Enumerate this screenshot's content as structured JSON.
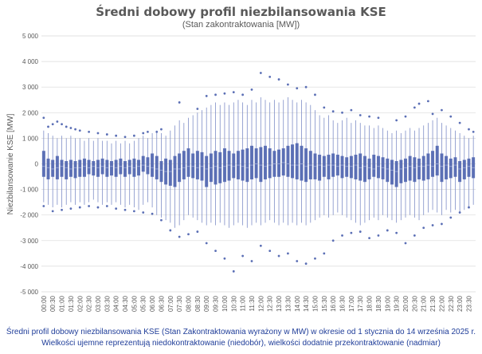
{
  "chart_data": {
    "type": "box",
    "title": "Średni dobowy profil niezbilansowania KSE",
    "subtitle": "(Stan zakontraktowania [MW])",
    "ylabel": "Niezbilansowanie KSE [MW]",
    "xlabel": "",
    "ylim": [
      -5000,
      5000
    ],
    "yticks": [
      -5000,
      -4000,
      -3000,
      -2000,
      -1000,
      0,
      1000,
      2000,
      3000,
      4000,
      5000
    ],
    "ytick_labels": [
      "-5 000",
      "-4 000",
      "-3 000",
      "-2 000",
      "-1 000",
      "0",
      "1 000",
      "2 000",
      "3 000",
      "4 000",
      "5 000"
    ],
    "grid": true,
    "categories": [
      "00:00",
      "00:15",
      "00:30",
      "00:45",
      "01:00",
      "01:15",
      "01:30",
      "01:45",
      "02:00",
      "02:15",
      "02:30",
      "02:45",
      "03:00",
      "03:15",
      "03:30",
      "03:45",
      "04:00",
      "04:15",
      "04:30",
      "04:45",
      "05:00",
      "05:15",
      "05:30",
      "05:45",
      "06:00",
      "06:15",
      "06:30",
      "06:45",
      "07:00",
      "07:15",
      "07:30",
      "07:45",
      "08:00",
      "08:15",
      "08:30",
      "08:45",
      "09:00",
      "09:15",
      "09:30",
      "09:45",
      "10:00",
      "10:15",
      "10:30",
      "10:45",
      "11:00",
      "11:15",
      "11:30",
      "11:45",
      "12:00",
      "12:15",
      "12:30",
      "12:45",
      "13:00",
      "13:15",
      "13:30",
      "13:45",
      "14:00",
      "14:15",
      "14:30",
      "14:45",
      "15:00",
      "15:15",
      "15:30",
      "15:45",
      "16:00",
      "16:15",
      "16:30",
      "16:45",
      "17:00",
      "17:15",
      "17:30",
      "17:45",
      "18:00",
      "18:15",
      "18:30",
      "18:45",
      "19:00",
      "19:15",
      "19:30",
      "19:45",
      "20:00",
      "20:15",
      "20:30",
      "20:45",
      "21:00",
      "21:15",
      "21:30",
      "21:45",
      "22:00",
      "22:15",
      "22:30",
      "22:45",
      "23:00",
      "23:15",
      "23:30",
      "23:45"
    ],
    "shown_tick_labels": [
      "00:00",
      "00:30",
      "01:00",
      "01:30",
      "02:00",
      "02:30",
      "03:00",
      "03:30",
      "04:00",
      "04:30",
      "05:00",
      "05:30",
      "06:00",
      "06:30",
      "07:00",
      "07:30",
      "08:00",
      "08:30",
      "09:00",
      "09:30",
      "10:00",
      "10:30",
      "11:00",
      "11:30",
      "12:00",
      "12:30",
      "13:00",
      "13:30",
      "14:00",
      "14:30",
      "15:00",
      "15:30",
      "16:00",
      "16:30",
      "17:00",
      "17:30",
      "18:00",
      "18:30",
      "19:00",
      "19:30",
      "20:00",
      "20:30",
      "21:00",
      "21:30",
      "22:00",
      "22:30",
      "23:00",
      "23:30"
    ],
    "q1": [
      -500,
      -600,
      -500,
      -600,
      -500,
      -600,
      -500,
      -550,
      -500,
      -500,
      -400,
      -450,
      -500,
      -400,
      -500,
      -450,
      -500,
      -400,
      -500,
      -400,
      -500,
      -450,
      -300,
      -400,
      -500,
      -600,
      -700,
      -800,
      -850,
      -900,
      -700,
      -600,
      -500,
      -550,
      -600,
      -650,
      -900,
      -700,
      -800,
      -750,
      -700,
      -650,
      -550,
      -600,
      -650,
      -700,
      -600,
      -550,
      -700,
      -600,
      -550,
      -500,
      -500,
      -450,
      -500,
      -550,
      -600,
      -650,
      -700,
      -600,
      -600,
      -650,
      -500,
      -600,
      -500,
      -450,
      -550,
      -500,
      -550,
      -600,
      -650,
      -700,
      -600,
      -500,
      -550,
      -600,
      -700,
      -800,
      -900,
      -750,
      -700,
      -650,
      -700,
      -600,
      -650,
      -600,
      -500,
      -450,
      -700,
      -600,
      -550,
      -500,
      -700,
      -600,
      -500,
      -550
    ],
    "median": [
      -100,
      -150,
      -200,
      -150,
      -100,
      -150,
      -200,
      -150,
      -150,
      -100,
      -150,
      -100,
      -150,
      -100,
      -150,
      -100,
      -150,
      -100,
      -150,
      -100,
      -150,
      -100,
      -50,
      -100,
      -150,
      -200,
      -250,
      -300,
      -300,
      -200,
      -200,
      -150,
      -100,
      -100,
      -150,
      -100,
      -200,
      -150,
      -100,
      -150,
      -100,
      -50,
      -100,
      -50,
      -100,
      -150,
      -50,
      0,
      -50,
      -100,
      -50,
      0,
      0,
      50,
      0,
      -50,
      -50,
      0,
      -100,
      -50,
      -100,
      -50,
      -100,
      -50,
      -50,
      -100,
      -50,
      -100,
      -100,
      -50,
      -150,
      -100,
      -150,
      -200,
      -100,
      -150,
      -200,
      -250,
      -300,
      -200,
      -150,
      -100,
      -150,
      -100,
      -100,
      -50,
      -100,
      0,
      -100,
      -50,
      -100,
      -50,
      -200,
      -150,
      -100,
      -150
    ],
    "q3": [
      500,
      200,
      150,
      300,
      150,
      100,
      150,
      100,
      150,
      200,
      150,
      100,
      150,
      200,
      150,
      100,
      150,
      200,
      100,
      150,
      200,
      150,
      300,
      250,
      400,
      300,
      100,
      200,
      150,
      300,
      400,
      500,
      600,
      400,
      500,
      450,
      300,
      400,
      500,
      450,
      600,
      500,
      400,
      500,
      550,
      600,
      700,
      600,
      650,
      700,
      600,
      500,
      550,
      600,
      700,
      750,
      800,
      700,
      600,
      500,
      400,
      350,
      300,
      350,
      400,
      350,
      300,
      250,
      300,
      350,
      400,
      300,
      200,
      350,
      300,
      250,
      200,
      150,
      100,
      150,
      200,
      300,
      250,
      200,
      300,
      400,
      500,
      700,
      400,
      300,
      200,
      250,
      100,
      150,
      200,
      250
    ],
    "whisker_low": [
      -1500,
      -1600,
      -1700,
      -1600,
      -1700,
      -1600,
      -1500,
      -1600,
      -1500,
      -1600,
      -1500,
      -1400,
      -1500,
      -1600,
      -1500,
      -1600,
      -1500,
      -1600,
      -1700,
      -1600,
      -1700,
      -1800,
      -1600,
      -1500,
      -1700,
      -2000,
      -2100,
      -2200,
      -2300,
      -2500,
      -2400,
      -2200,
      -2000,
      -2100,
      -2200,
      -2300,
      -2400,
      -2300,
      -2400,
      -2300,
      -2400,
      -2500,
      -2400,
      -2300,
      -2400,
      -2500,
      -2400,
      -2300,
      -2400,
      -2300,
      -2200,
      -2300,
      -2400,
      -2300,
      -2400,
      -2300,
      -2400,
      -2300,
      -2400,
      -2300,
      -2200,
      -2100,
      -2000,
      -2100,
      -2000,
      -1900,
      -2000,
      -2100,
      -2200,
      -2300,
      -2400,
      -2300,
      -2200,
      -2100,
      -2200,
      -2000,
      -2100,
      -2200,
      -2300,
      -2200,
      -2100,
      -2000,
      -2100,
      -2200,
      -2000,
      -1900,
      -1800,
      -1900,
      -2000,
      -1800,
      -1900,
      -1800,
      -1900,
      -1800,
      -1700,
      -1600
    ],
    "whisker_high": [
      1300,
      1200,
      1100,
      1000,
      1100,
      1000,
      1100,
      1000,
      1000,
      900,
      1000,
      900,
      1000,
      900,
      900,
      800,
      900,
      800,
      900,
      800,
      900,
      1000,
      1100,
      1000,
      1200,
      1300,
      1200,
      1100,
      1300,
      1500,
      1700,
      1600,
      1800,
      1900,
      2000,
      2100,
      2200,
      2300,
      2400,
      2300,
      2400,
      2300,
      2400,
      2500,
      2400,
      2300,
      2500,
      2400,
      2600,
      2500,
      2400,
      2500,
      2400,
      2500,
      2600,
      2500,
      2400,
      2500,
      2400,
      2300,
      2100,
      1900,
      1800,
      1900,
      1700,
      1600,
      1700,
      1800,
      1600,
      1700,
      1600,
      1500,
      1500,
      1400,
      1500,
      1400,
      1300,
      1200,
      1300,
      1200,
      1300,
      1400,
      1300,
      1400,
      1500,
      1600,
      1700,
      1800,
      1600,
      1500,
      1400,
      1300,
      1200,
      1100,
      1000,
      1100
    ],
    "outliers_high": [
      [
        0,
        1800
      ],
      [
        1,
        1450
      ],
      [
        2,
        1550
      ],
      [
        3,
        1650
      ],
      [
        4,
        1550
      ],
      [
        5,
        1450
      ],
      [
        6,
        1400
      ],
      [
        7,
        1350
      ],
      [
        8,
        1300
      ],
      [
        10,
        1250
      ],
      [
        12,
        1200
      ],
      [
        14,
        1150
      ],
      [
        16,
        1100
      ],
      [
        18,
        1050
      ],
      [
        20,
        1100
      ],
      [
        22,
        1200
      ],
      [
        23,
        1250
      ],
      [
        25,
        1250
      ],
      [
        26,
        1350
      ],
      [
        30,
        2400
      ],
      [
        34,
        2150
      ],
      [
        36,
        2650
      ],
      [
        38,
        2700
      ],
      [
        40,
        2750
      ],
      [
        42,
        2800
      ],
      [
        44,
        2700
      ],
      [
        46,
        2900
      ],
      [
        48,
        3550
      ],
      [
        50,
        3400
      ],
      [
        52,
        3300
      ],
      [
        54,
        3100
      ],
      [
        56,
        2950
      ],
      [
        58,
        3000
      ],
      [
        60,
        2700
      ],
      [
        62,
        2200
      ],
      [
        64,
        2050
      ],
      [
        66,
        2000
      ],
      [
        68,
        2100
      ],
      [
        70,
        1900
      ],
      [
        72,
        1850
      ],
      [
        74,
        1800
      ],
      [
        78,
        1700
      ],
      [
        80,
        1850
      ],
      [
        82,
        2200
      ],
      [
        83,
        2350
      ],
      [
        85,
        2450
      ],
      [
        86,
        1950
      ],
      [
        88,
        2100
      ],
      [
        90,
        1850
      ],
      [
        92,
        1600
      ],
      [
        94,
        1350
      ],
      [
        95,
        1250
      ]
    ],
    "outliers_low": [
      [
        0,
        -1650
      ],
      [
        2,
        -1850
      ],
      [
        4,
        -1800
      ],
      [
        6,
        -1750
      ],
      [
        8,
        -1700
      ],
      [
        10,
        -1650
      ],
      [
        12,
        -1700
      ],
      [
        14,
        -1650
      ],
      [
        16,
        -1750
      ],
      [
        18,
        -1800
      ],
      [
        20,
        -1850
      ],
      [
        22,
        -1900
      ],
      [
        24,
        -1950
      ],
      [
        26,
        -2200
      ],
      [
        28,
        -2600
      ],
      [
        30,
        -2850
      ],
      [
        32,
        -2750
      ],
      [
        34,
        -2650
      ],
      [
        36,
        -3100
      ],
      [
        38,
        -3400
      ],
      [
        40,
        -3700
      ],
      [
        42,
        -4200
      ],
      [
        44,
        -3600
      ],
      [
        46,
        -3800
      ],
      [
        48,
        -3200
      ],
      [
        50,
        -3400
      ],
      [
        52,
        -3600
      ],
      [
        54,
        -3500
      ],
      [
        56,
        -3800
      ],
      [
        58,
        -3900
      ],
      [
        60,
        -3700
      ],
      [
        62,
        -3500
      ],
      [
        64,
        -3000
      ],
      [
        66,
        -2800
      ],
      [
        68,
        -2700
      ],
      [
        70,
        -2650
      ],
      [
        72,
        -2900
      ],
      [
        74,
        -2800
      ],
      [
        76,
        -2600
      ],
      [
        78,
        -2700
      ],
      [
        80,
        -3100
      ],
      [
        82,
        -2800
      ],
      [
        84,
        -2500
      ],
      [
        86,
        -2400
      ],
      [
        88,
        -2350
      ],
      [
        90,
        -2100
      ],
      [
        92,
        -1900
      ],
      [
        94,
        -1700
      ]
    ]
  },
  "caption": {
    "line1": "Średni profil dobowy niezbilansowania KSE (Stan Zakontraktowania wyrażony w MW) w okresie od 1 stycznia do 14 września 2025 r.",
    "line2": "Wielkości ujemne reprezentują niedokontraktowanie (niedobór), wielkości dodatnie przekontraktowanie (nadmiar)"
  },
  "colors": {
    "box": "#5b6fb5",
    "whisker": "#7f8ec7",
    "grid": "#d9d9d9",
    "mean_line": "#9aa8d8"
  }
}
